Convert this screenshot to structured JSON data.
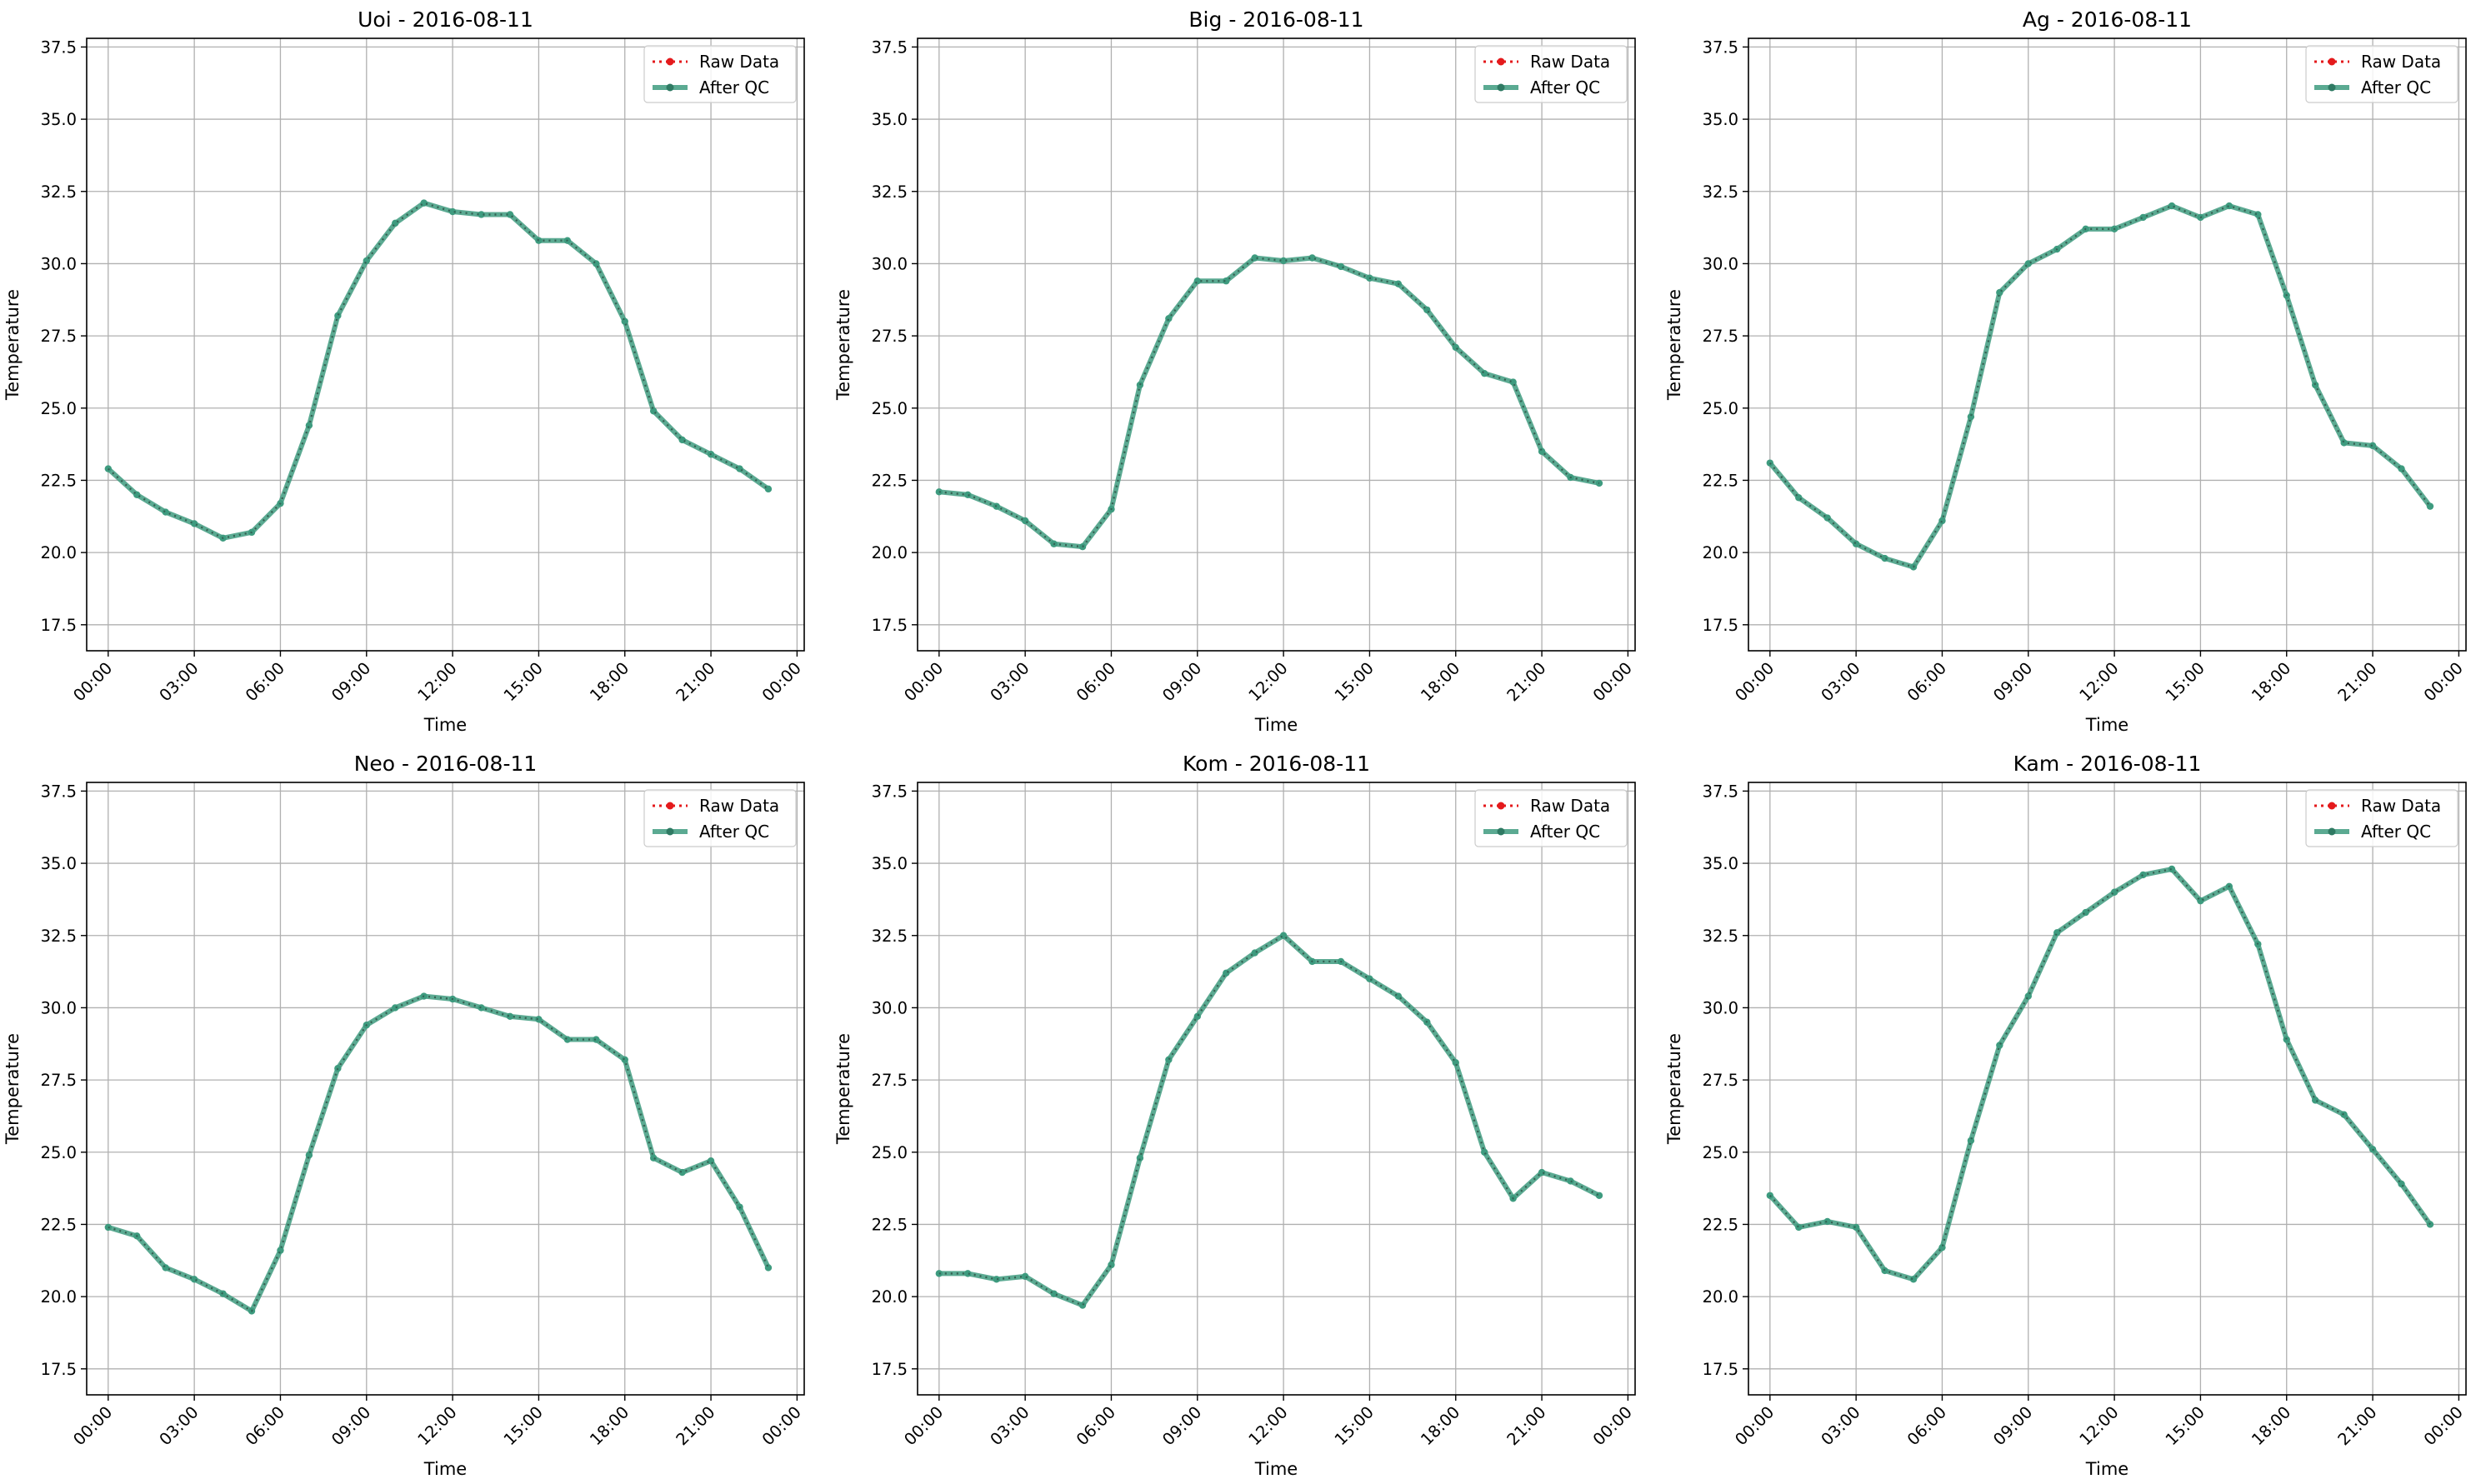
{
  "figure": {
    "x_tick_labels": [
      "00:00",
      "03:00",
      "06:00",
      "09:00",
      "12:00",
      "15:00",
      "18:00",
      "21:00",
      "00:00"
    ],
    "y_tick_labels": [
      "17.5",
      "20.0",
      "22.5",
      "25.0",
      "27.5",
      "30.0",
      "32.5",
      "35.0",
      "37.5"
    ],
    "legend": {
      "raw": "Raw Data",
      "qc": "After QC"
    },
    "colors": {
      "raw": "#e41a1c",
      "qc": "#3e9b7f",
      "grid": "#b0b0b0"
    }
  },
  "chart_data": [
    {
      "type": "line",
      "title": "Uoi - 2016-08-11",
      "xlabel": "Time",
      "ylabel": "Temperature",
      "ylim": [
        16.6,
        37.8
      ],
      "xlim": [
        "2016-08-11 -00:45",
        "2016-08-12 00:15"
      ],
      "grid": true,
      "legend_position": "top-right",
      "x": [
        "00:00",
        "01:00",
        "02:00",
        "03:00",
        "04:00",
        "05:00",
        "06:00",
        "07:00",
        "08:00",
        "09:00",
        "10:00",
        "11:00",
        "12:00",
        "13:00",
        "14:00",
        "15:00",
        "16:00",
        "17:00",
        "18:00",
        "19:00",
        "20:00",
        "21:00",
        "22:00",
        "23:00"
      ],
      "series": [
        {
          "name": "Raw Data",
          "values": [
            22.9,
            22.0,
            21.4,
            21.0,
            20.5,
            20.7,
            21.7,
            24.4,
            28.2,
            30.1,
            31.4,
            32.1,
            31.8,
            31.7,
            31.7,
            30.8,
            30.8,
            30.0,
            28.0,
            24.9,
            23.9,
            23.4,
            22.9,
            22.2
          ]
        },
        {
          "name": "After QC",
          "values": [
            22.9,
            22.0,
            21.4,
            21.0,
            20.5,
            20.7,
            21.7,
            24.4,
            28.2,
            30.1,
            31.4,
            32.1,
            31.8,
            31.7,
            31.7,
            30.8,
            30.8,
            30.0,
            28.0,
            24.9,
            23.9,
            23.4,
            22.9,
            22.2
          ]
        }
      ]
    },
    {
      "type": "line",
      "title": "Big - 2016-08-11",
      "xlabel": "Time",
      "ylabel": "Temperature",
      "ylim": [
        16.6,
        37.8
      ],
      "grid": true,
      "legend_position": "top-right",
      "x": [
        "00:00",
        "01:00",
        "02:00",
        "03:00",
        "04:00",
        "05:00",
        "06:00",
        "07:00",
        "08:00",
        "09:00",
        "10:00",
        "11:00",
        "12:00",
        "13:00",
        "14:00",
        "15:00",
        "16:00",
        "17:00",
        "18:00",
        "19:00",
        "20:00",
        "21:00",
        "22:00",
        "23:00"
      ],
      "series": [
        {
          "name": "Raw Data",
          "values": [
            22.1,
            22.0,
            21.6,
            21.1,
            20.3,
            20.2,
            21.5,
            25.8,
            28.1,
            29.4,
            29.4,
            30.2,
            30.1,
            30.2,
            29.9,
            29.5,
            29.3,
            28.4,
            27.1,
            26.2,
            25.9,
            23.5,
            22.6,
            22.4
          ]
        },
        {
          "name": "After QC",
          "values": [
            22.1,
            22.0,
            21.6,
            21.1,
            20.3,
            20.2,
            21.5,
            25.8,
            28.1,
            29.4,
            29.4,
            30.2,
            30.1,
            30.2,
            29.9,
            29.5,
            29.3,
            28.4,
            27.1,
            26.2,
            25.9,
            23.5,
            22.6,
            22.4
          ]
        }
      ]
    },
    {
      "type": "line",
      "title": "Ag - 2016-08-11",
      "xlabel": "Time",
      "ylabel": "Temperature",
      "ylim": [
        16.6,
        37.8
      ],
      "grid": true,
      "legend_position": "top-right",
      "x": [
        "00:00",
        "01:00",
        "02:00",
        "03:00",
        "04:00",
        "05:00",
        "06:00",
        "07:00",
        "08:00",
        "09:00",
        "10:00",
        "11:00",
        "12:00",
        "13:00",
        "14:00",
        "15:00",
        "16:00",
        "17:00",
        "18:00",
        "19:00",
        "20:00",
        "21:00",
        "22:00",
        "23:00"
      ],
      "series": [
        {
          "name": "Raw Data",
          "values": [
            23.1,
            21.9,
            21.2,
            20.3,
            19.8,
            19.5,
            21.1,
            24.7,
            29.0,
            30.0,
            30.5,
            31.2,
            31.2,
            31.6,
            32.0,
            31.6,
            32.0,
            31.7,
            28.9,
            25.8,
            23.8,
            23.7,
            22.9,
            21.6
          ]
        },
        {
          "name": "After QC",
          "values": [
            23.1,
            21.9,
            21.2,
            20.3,
            19.8,
            19.5,
            21.1,
            24.7,
            29.0,
            30.0,
            30.5,
            31.2,
            31.2,
            31.6,
            32.0,
            31.6,
            32.0,
            31.7,
            28.9,
            25.8,
            23.8,
            23.7,
            22.9,
            21.6
          ]
        }
      ]
    },
    {
      "type": "line",
      "title": "Neo - 2016-08-11",
      "xlabel": "Time",
      "ylabel": "Temperature",
      "ylim": [
        16.6,
        37.8
      ],
      "grid": true,
      "legend_position": "top-right",
      "x": [
        "00:00",
        "01:00",
        "02:00",
        "03:00",
        "04:00",
        "05:00",
        "06:00",
        "07:00",
        "08:00",
        "09:00",
        "10:00",
        "11:00",
        "12:00",
        "13:00",
        "14:00",
        "15:00",
        "16:00",
        "17:00",
        "18:00",
        "19:00",
        "20:00",
        "21:00",
        "22:00",
        "23:00"
      ],
      "series": [
        {
          "name": "Raw Data",
          "values": [
            22.4,
            22.1,
            21.0,
            20.6,
            20.1,
            19.5,
            21.6,
            24.9,
            27.9,
            29.4,
            30.0,
            30.4,
            30.3,
            30.0,
            29.7,
            29.6,
            28.9,
            28.9,
            28.2,
            24.8,
            24.3,
            24.7,
            23.1,
            21.0
          ]
        },
        {
          "name": "After QC",
          "values": [
            22.4,
            22.1,
            21.0,
            20.6,
            20.1,
            19.5,
            21.6,
            24.9,
            27.9,
            29.4,
            30.0,
            30.4,
            30.3,
            30.0,
            29.7,
            29.6,
            28.9,
            28.9,
            28.2,
            24.8,
            24.3,
            24.7,
            23.1,
            21.0
          ]
        }
      ]
    },
    {
      "type": "line",
      "title": "Kom - 2016-08-11",
      "xlabel": "Time",
      "ylabel": "Temperature",
      "ylim": [
        16.6,
        37.8
      ],
      "grid": true,
      "legend_position": "top-right",
      "x": [
        "00:00",
        "01:00",
        "02:00",
        "03:00",
        "04:00",
        "05:00",
        "06:00",
        "07:00",
        "08:00",
        "09:00",
        "10:00",
        "11:00",
        "12:00",
        "13:00",
        "14:00",
        "15:00",
        "16:00",
        "17:00",
        "18:00",
        "19:00",
        "20:00",
        "21:00",
        "22:00",
        "23:00"
      ],
      "series": [
        {
          "name": "Raw Data",
          "values": [
            20.8,
            20.8,
            20.6,
            20.7,
            20.1,
            19.7,
            21.1,
            24.8,
            28.2,
            29.7,
            31.2,
            31.9,
            32.5,
            31.6,
            31.6,
            31.0,
            30.4,
            29.5,
            28.1,
            25.0,
            23.4,
            24.3,
            24.0,
            23.5
          ]
        },
        {
          "name": "After QC",
          "values": [
            20.8,
            20.8,
            20.6,
            20.7,
            20.1,
            19.7,
            21.1,
            24.8,
            28.2,
            29.7,
            31.2,
            31.9,
            32.5,
            31.6,
            31.6,
            31.0,
            30.4,
            29.5,
            28.1,
            25.0,
            23.4,
            24.3,
            24.0,
            23.5
          ]
        }
      ]
    },
    {
      "type": "line",
      "title": "Kam - 2016-08-11",
      "xlabel": "Time",
      "ylabel": "Temperature",
      "ylim": [
        16.6,
        37.8
      ],
      "grid": true,
      "legend_position": "top-right",
      "x": [
        "00:00",
        "01:00",
        "02:00",
        "03:00",
        "04:00",
        "05:00",
        "06:00",
        "07:00",
        "08:00",
        "09:00",
        "10:00",
        "11:00",
        "12:00",
        "13:00",
        "14:00",
        "15:00",
        "16:00",
        "17:00",
        "18:00",
        "19:00",
        "20:00",
        "21:00",
        "22:00",
        "23:00"
      ],
      "series": [
        {
          "name": "Raw Data",
          "values": [
            23.5,
            22.4,
            22.6,
            22.4,
            20.9,
            20.6,
            21.7,
            25.4,
            28.7,
            30.4,
            32.6,
            33.3,
            34.0,
            34.6,
            34.8,
            33.7,
            34.2,
            32.2,
            28.9,
            26.8,
            26.3,
            25.1,
            23.9,
            22.5
          ]
        },
        {
          "name": "After QC",
          "values": [
            23.5,
            22.4,
            22.6,
            22.4,
            20.9,
            20.6,
            21.7,
            25.4,
            28.7,
            30.4,
            32.6,
            33.3,
            34.0,
            34.6,
            34.8,
            33.7,
            34.2,
            32.2,
            28.9,
            26.8,
            26.3,
            25.1,
            23.9,
            22.5
          ]
        }
      ]
    }
  ]
}
